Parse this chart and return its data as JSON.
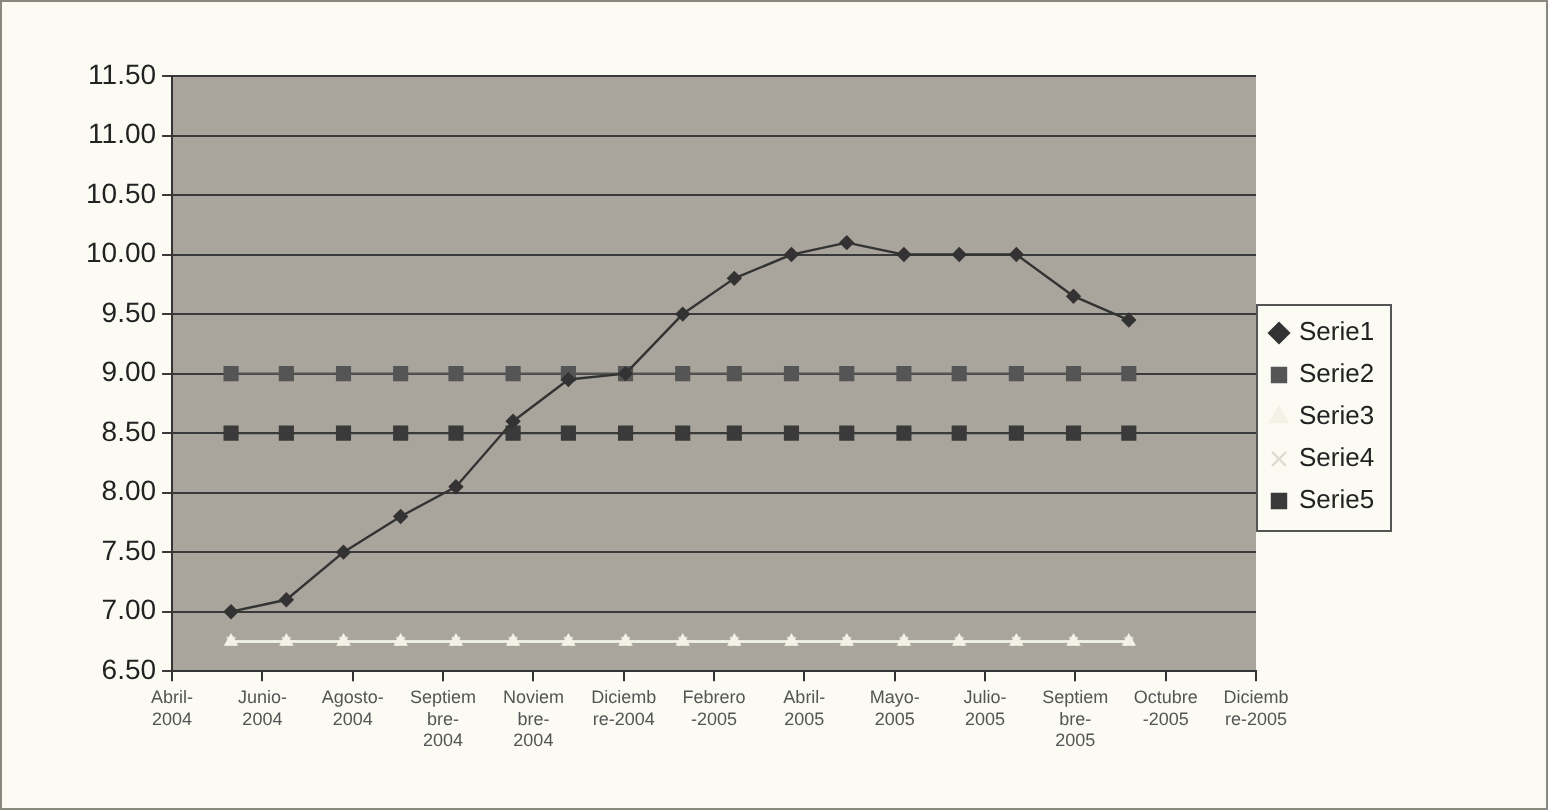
{
  "chart_data": {
    "type": "line",
    "x": [
      "2004-06",
      "2004-07",
      "2004-08",
      "2004-09",
      "2004-10",
      "2004-11",
      "2004-12",
      "2005-01",
      "2005-02",
      "2005-03",
      "2005-04",
      "2005-05",
      "2005-06",
      "2005-07",
      "2005-08",
      "2005-09",
      "2005-10"
    ],
    "series": [
      {
        "name": "Serie1",
        "color": "#333333",
        "marker": "diamond",
        "values": [
          7.0,
          7.1,
          7.5,
          7.8,
          8.05,
          8.6,
          8.95,
          9.0,
          9.5,
          9.8,
          10.0,
          10.1,
          10.0,
          10.0,
          10.0,
          9.65,
          9.45
        ]
      },
      {
        "name": "Serie2",
        "color": "#555555",
        "marker": "square",
        "values": [
          9.0,
          9.0,
          9.0,
          9.0,
          9.0,
          9.0,
          9.0,
          9.0,
          9.0,
          9.0,
          9.0,
          9.0,
          9.0,
          9.0,
          9.0,
          9.0,
          9.0
        ]
      },
      {
        "name": "Serie3",
        "color": "#f2f2e6",
        "marker": "triangle",
        "values": [
          6.75,
          6.75,
          6.75,
          6.75,
          6.75,
          6.75,
          6.75,
          6.75,
          6.75,
          6.75,
          6.75,
          6.75,
          6.75,
          6.75,
          6.75,
          6.75,
          6.75
        ]
      },
      {
        "name": "Serie4",
        "color": "#dcdcd0",
        "marker": "cross",
        "values": [
          6.75,
          6.75,
          6.75,
          6.75,
          6.75,
          6.75,
          6.75,
          6.75,
          6.75,
          6.75,
          6.75,
          6.75,
          6.75,
          6.75,
          6.75,
          6.75,
          6.75
        ]
      },
      {
        "name": "Serie5",
        "color": "#3a3a3a",
        "marker": "square",
        "values": [
          8.5,
          8.5,
          8.5,
          8.5,
          8.5,
          8.5,
          8.5,
          8.5,
          8.5,
          8.5,
          8.5,
          8.5,
          8.5,
          8.5,
          8.5,
          8.5,
          8.5
        ]
      }
    ],
    "xlim": [
      "2004-04-30",
      "2005-12-09"
    ],
    "xticks": [
      {
        "value": "2004-04-30",
        "label": "Abril-2004"
      },
      {
        "value": "2004-06-18",
        "label": "Junio-2004"
      },
      {
        "value": "2004-08-06",
        "label": "Agosto-2004"
      },
      {
        "value": "2004-09-24",
        "label": "Septiembre-2004"
      },
      {
        "value": "2004-11-12",
        "label": "Noviembre-2004"
      },
      {
        "value": "2004-12-31",
        "label": "Diciembre-2004"
      },
      {
        "value": "2005-02-18",
        "label": "Febrero-2005"
      },
      {
        "value": "2005-04-08",
        "label": "Abril-2005"
      },
      {
        "value": "2005-05-27",
        "label": "Mayo-2005"
      },
      {
        "value": "2005-07-15",
        "label": "Julio-2005"
      },
      {
        "value": "2005-09-02",
        "label": "Septiembre-2005"
      },
      {
        "value": "2005-10-21",
        "label": "Octubre-2005"
      },
      {
        "value": "2005-12-09",
        "label": "Diciembre-2005"
      }
    ],
    "ylim": [
      6.5,
      11.5
    ],
    "yticks": [
      {
        "value": 6.5,
        "label": "6.50"
      },
      {
        "value": 7,
        "label": "7.00"
      },
      {
        "value": 7.5,
        "label": "7.50"
      },
      {
        "value": 8,
        "label": "8.00"
      },
      {
        "value": 8.5,
        "label": "8.50"
      },
      {
        "value": 9,
        "label": "9.00"
      },
      {
        "value": 9.5,
        "label": "9.50"
      },
      {
        "value": 10,
        "label": "10.00"
      },
      {
        "value": 10.5,
        "label": "10.50"
      },
      {
        "value": 11,
        "label": "11.00"
      },
      {
        "value": 11.5,
        "label": "11.50"
      }
    ],
    "grid": "y",
    "legend": "right"
  }
}
